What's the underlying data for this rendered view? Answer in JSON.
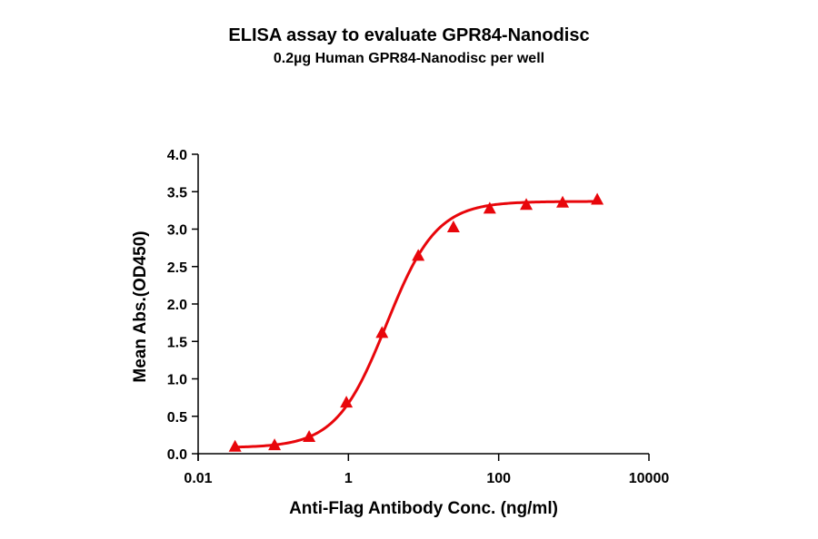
{
  "header": {
    "title": "ELISA assay to evaluate GPR84-Nanodisc",
    "subtitle": "0.2µg Human GPR84-Nanodisc per well"
  },
  "colors": {
    "series": "#e8060b",
    "axis": "#000000",
    "background": "#ffffff"
  },
  "chart_data": {
    "type": "scatter",
    "title": "ELISA assay to evaluate GPR84-Nanodisc",
    "subtitle": "0.2µg Human GPR84-Nanodisc per well",
    "xlabel": "Anti-Flag Antibody Conc. (ng/ml)",
    "ylabel": "Mean Abs.(OD450)",
    "xscale": "log",
    "xlim": [
      0.01,
      10000
    ],
    "ylim": [
      0.0,
      4.0
    ],
    "xticks": [
      "0.01",
      "1",
      "100",
      "10000"
    ],
    "yticks": [
      "0.0",
      "0.5",
      "1.0",
      "1.5",
      "2.0",
      "2.5",
      "3.0",
      "3.5",
      "4.0"
    ],
    "grid": false,
    "legend": null,
    "marker": "triangle",
    "series": [
      {
        "name": "GPR84-Nanodisc",
        "x": [
          0.031,
          0.104,
          0.3,
          0.94,
          2.8,
          8.5,
          25,
          76,
          233,
          710,
          2050
        ],
        "y": [
          0.1,
          0.12,
          0.23,
          0.69,
          1.62,
          2.65,
          3.03,
          3.28,
          3.33,
          3.36,
          3.4
        ],
        "fit": {
          "model": "4PL",
          "bottom": 0.08,
          "top": 3.37,
          "ec50": 3.2,
          "hill": 1.3
        }
      }
    ]
  }
}
